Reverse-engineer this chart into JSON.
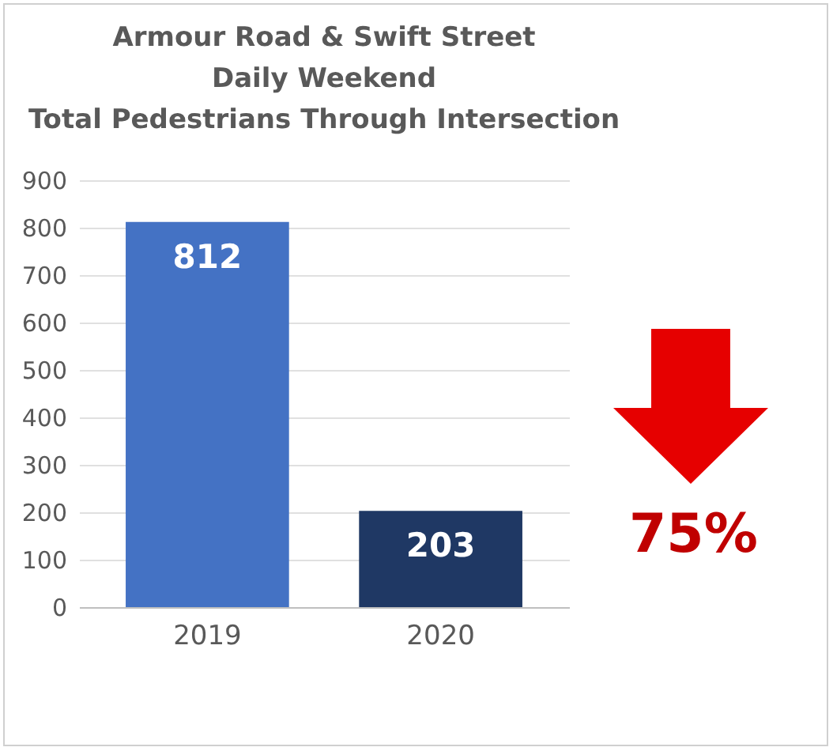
{
  "chart_data": {
    "type": "bar",
    "title": [
      "Armour Road & Swift Street",
      "Daily Weekend",
      "Total Pedestrians Through Intersection"
    ],
    "categories": [
      "2019",
      "2020"
    ],
    "values": [
      812,
      203
    ],
    "colors": [
      "#4472c4",
      "#1f3864"
    ],
    "ylim": [
      0,
      900
    ],
    "yticks": [
      0,
      100,
      200,
      300,
      400,
      500,
      600,
      700,
      800,
      900
    ],
    "grid": "y",
    "data_labels": true,
    "annotations": [
      "75%"
    ]
  }
}
